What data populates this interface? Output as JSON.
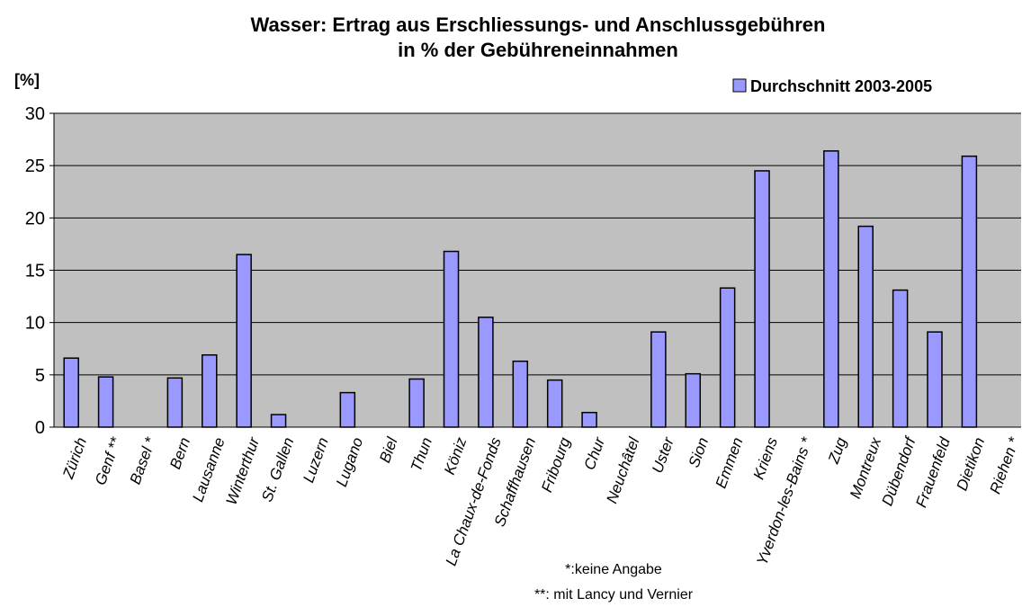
{
  "chart_data": {
    "type": "bar",
    "title": [
      "Wasser: Ertrag aus Erschliessungs- und Anschlussgebühren",
      "in % der Gebühreneinnahmen"
    ],
    "y_label": "[%]",
    "categories": [
      "Zürich",
      "Genf **",
      "Basel *",
      "Bern",
      "Lausanne",
      "Winterthur",
      "St. Gallen",
      "Luzern",
      "Lugano",
      "Biel",
      "Thun",
      "Köniz",
      "La Chaux-de-Fonds",
      "Schaffhausen",
      "Fribourg",
      "Chur",
      "Neuchâtel",
      "Uster",
      "Sion",
      "Emmen",
      "Kriens",
      "Yverdon-les-Bains *",
      "Zug",
      "Montreux",
      "Dübendorf",
      "Frauenfeld",
      "Dietikon",
      "Riehen *"
    ],
    "series": [
      {
        "name": "Durchschnitt 2003-2005",
        "color": "#9999ff",
        "values": [
          6.6,
          4.8,
          null,
          4.7,
          6.9,
          16.5,
          1.2,
          null,
          3.3,
          null,
          4.6,
          16.8,
          10.5,
          6.3,
          4.5,
          1.4,
          null,
          9.1,
          5.1,
          13.3,
          24.5,
          null,
          26.4,
          19.2,
          13.1,
          9.1,
          25.9,
          null
        ]
      }
    ],
    "ylim": [
      0,
      30
    ],
    "yticks": [
      0,
      5,
      10,
      15,
      20,
      25,
      30
    ],
    "grid": true,
    "legend": "top-right",
    "annotations": [
      "*:keine Angabe",
      "**: mit Lancy und Vernier"
    ]
  }
}
